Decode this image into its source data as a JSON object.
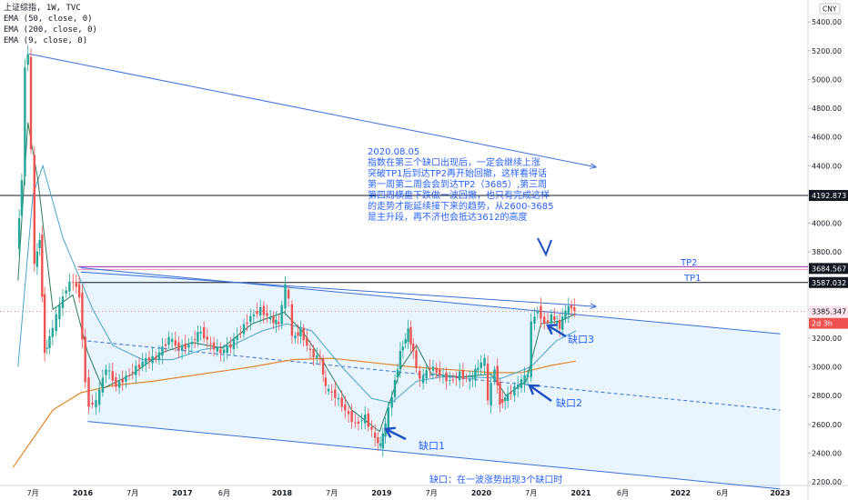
{
  "header": {
    "symbol_line": "上证综指, 1W, TVC",
    "indicators": [
      "EMA (50, close, 0)",
      "EMA (200, close, 0)",
      "EMA (9, close, 0)"
    ],
    "currency": "CNY"
  },
  "note": {
    "lines": [
      "2020.08.05",
      "指数在第三个缺口出现后，一定会继续上涨",
      "突破TP1后到达TP2再开始回撤，这样看得话",
      "第一周第二周会会到达TP2（3685）,第三周",
      "第四周横盘下跌做一波回撤，也只有完成这样",
      "的走势才能延续接下来的趋势，从2600-3685",
      "是主升段，再不济也会抵达3612的高度"
    ],
    "bottom_text": "缺口：在一波涨势出现3个缺口时"
  },
  "labels": {
    "tp2": "TP2",
    "tp1": "TP1",
    "gap1": "缺口1",
    "gap2": "缺口2",
    "gap3": "缺口3"
  },
  "chart_data": {
    "type": "line",
    "title": "上证综指, 1W, TVC",
    "xlabel": "",
    "ylabel": "",
    "ylim": [
      2160,
      5500
    ],
    "x_ticks": [
      "7月",
      "2016",
      "7月",
      "2017",
      "6月",
      "2018",
      "7月",
      "2019",
      "7月",
      "2020",
      "7月",
      "2021",
      "6月",
      "2022",
      "6月",
      "2023"
    ],
    "y_ticks": [
      2200,
      2400,
      2600,
      2800,
      3000,
      3200,
      3400,
      3600,
      3800,
      4000,
      4200,
      4400,
      4600,
      4800,
      5000,
      5200,
      5400
    ],
    "price_labels": [
      {
        "value": 4192.873,
        "text": "4192.873",
        "style": "black"
      },
      {
        "value": 3684.567,
        "text": "3684.567",
        "style": "black"
      },
      {
        "value": 3587.032,
        "text": "3587.032",
        "style": "black"
      },
      {
        "value": 3385.347,
        "text": "3385.347",
        "style": "pink"
      },
      {
        "value": 3300,
        "text": "2d 3h",
        "style": "red"
      }
    ],
    "horizontal_levels": [
      {
        "name": "TP2",
        "value": 3684.567,
        "color": "#9c27b0"
      },
      {
        "name": "TP1",
        "value": 3587.032,
        "color": "#131722"
      },
      {
        "name": "",
        "value": 4192.873,
        "color": "#131722"
      }
    ],
    "price_series": [
      [
        2015.35,
        3800
      ],
      [
        2015.4,
        4300
      ],
      [
        2015.44,
        5100
      ],
      [
        2015.46,
        5178
      ],
      [
        2015.5,
        4500
      ],
      [
        2015.53,
        3700
      ],
      [
        2015.58,
        3900
      ],
      [
        2015.63,
        3100
      ],
      [
        2015.68,
        3200
      ],
      [
        2015.75,
        3350
      ],
      [
        2015.85,
        3550
      ],
      [
        2015.92,
        3600
      ],
      [
        2015.98,
        3500
      ],
      [
        2016.04,
        2900
      ],
      [
        2016.08,
        2740
      ],
      [
        2016.15,
        2750
      ],
      [
        2016.25,
        3000
      ],
      [
        2016.35,
        2870
      ],
      [
        2016.45,
        2930
      ],
      [
        2016.55,
        2990
      ],
      [
        2016.65,
        3050
      ],
      [
        2016.75,
        3060
      ],
      [
        2016.88,
        3200
      ],
      [
        2016.98,
        3130
      ],
      [
        2017.08,
        3150
      ],
      [
        2017.2,
        3250
      ],
      [
        2017.3,
        3150
      ],
      [
        2017.4,
        3100
      ],
      [
        2017.5,
        3150
      ],
      [
        2017.6,
        3250
      ],
      [
        2017.7,
        3350
      ],
      [
        2017.8,
        3400
      ],
      [
        2017.9,
        3330
      ],
      [
        2017.98,
        3300
      ],
      [
        2018.05,
        3560
      ],
      [
        2018.08,
        3460
      ],
      [
        2018.12,
        3200
      ],
      [
        2018.2,
        3250
      ],
      [
        2018.3,
        3100
      ],
      [
        2018.4,
        3050
      ],
      [
        2018.45,
        2850
      ],
      [
        2018.55,
        2800
      ],
      [
        2018.65,
        2700
      ],
      [
        2018.75,
        2600
      ],
      [
        2018.85,
        2650
      ],
      [
        2018.95,
        2500
      ],
      [
        2019.0,
        2450
      ],
      [
        2019.05,
        2600
      ],
      [
        2019.12,
        2800
      ],
      [
        2019.2,
        3100
      ],
      [
        2019.28,
        3250
      ],
      [
        2019.33,
        3100
      ],
      [
        2019.4,
        2900
      ],
      [
        2019.5,
        3000
      ],
      [
        2019.6,
        2950
      ],
      [
        2019.7,
        2900
      ],
      [
        2019.8,
        2950
      ],
      [
        2019.9,
        2900
      ],
      [
        2019.98,
        3000
      ],
      [
        2020.05,
        3050
      ],
      [
        2020.08,
        2750
      ],
      [
        2020.15,
        3000
      ],
      [
        2020.2,
        2750
      ],
      [
        2020.28,
        2800
      ],
      [
        2020.35,
        2850
      ],
      [
        2020.42,
        2900
      ],
      [
        2020.48,
        2950
      ],
      [
        2020.52,
        3300
      ],
      [
        2020.58,
        3400
      ],
      [
        2020.65,
        3300
      ],
      [
        2020.72,
        3350
      ],
      [
        2020.8,
        3280
      ],
      [
        2020.86,
        3390
      ],
      [
        2020.92,
        3420
      ],
      [
        2020.95,
        3385
      ]
    ],
    "ema_50": [
      [
        2015.35,
        3000
      ],
      [
        2015.5,
        4200
      ],
      [
        2015.6,
        4400
      ],
      [
        2015.8,
        3900
      ],
      [
        2015.98,
        3600
      ],
      [
        2016.1,
        3400
      ],
      [
        2016.3,
        3150
      ],
      [
        2016.6,
        3050
      ],
      [
        2016.9,
        3050
      ],
      [
        2017.2,
        3120
      ],
      [
        2017.5,
        3150
      ],
      [
        2017.8,
        3250
      ],
      [
        2018.05,
        3300
      ],
      [
        2018.3,
        3250
      ],
      [
        2018.6,
        3000
      ],
      [
        2018.9,
        2780
      ],
      [
        2019.1,
        2750
      ],
      [
        2019.35,
        2900
      ],
      [
        2019.6,
        2930
      ],
      [
        2019.9,
        2930
      ],
      [
        2020.2,
        2920
      ],
      [
        2020.5,
        3000
      ],
      [
        2020.75,
        3180
      ],
      [
        2020.95,
        3250
      ]
    ],
    "ema_200": [
      [
        2015.3,
        2300
      ],
      [
        2015.5,
        2500
      ],
      [
        2015.7,
        2700
      ],
      [
        2015.98,
        2820
      ],
      [
        2016.3,
        2870
      ],
      [
        2016.7,
        2900
      ],
      [
        2017.2,
        2950
      ],
      [
        2017.7,
        3000
      ],
      [
        2018.1,
        3050
      ],
      [
        2018.5,
        3060
      ],
      [
        2018.9,
        3030
      ],
      [
        2019.3,
        3000
      ],
      [
        2019.7,
        2980
      ],
      [
        2020.1,
        2960
      ],
      [
        2020.4,
        2960
      ],
      [
        2020.7,
        3010
      ],
      [
        2020.95,
        3040
      ]
    ],
    "ema_9": [
      [
        2015.35,
        3600
      ],
      [
        2015.45,
        4700
      ],
      [
        2015.55,
        4300
      ],
      [
        2015.7,
        3400
      ],
      [
        2015.9,
        3500
      ],
      [
        2016.05,
        3100
      ],
      [
        2016.2,
        2850
      ],
      [
        2016.5,
        2950
      ],
      [
        2016.8,
        3100
      ],
      [
        2017.1,
        3170
      ],
      [
        2017.4,
        3130
      ],
      [
        2017.7,
        3300
      ],
      [
        2018.02,
        3380
      ],
      [
        2018.2,
        3250
      ],
      [
        2018.4,
        3050
      ],
      [
        2018.7,
        2700
      ],
      [
        2018.98,
        2550
      ],
      [
        2019.2,
        3000
      ],
      [
        2019.35,
        3150
      ],
      [
        2019.5,
        2950
      ],
      [
        2019.8,
        2930
      ],
      [
        2020.1,
        2950
      ],
      [
        2020.25,
        2800
      ],
      [
        2020.45,
        2900
      ],
      [
        2020.6,
        3300
      ],
      [
        2020.8,
        3320
      ],
      [
        2020.95,
        3370
      ]
    ],
    "trendlines": [
      {
        "points": [
          [
            2015.46,
            5178
          ],
          [
            2021.15,
            4390
          ]
        ],
        "style": "solid",
        "arrow": true
      },
      {
        "points": [
          [
            2015.98,
            3660
          ],
          [
            2021.15,
            3420
          ]
        ],
        "style": "solid",
        "arrow": true
      },
      {
        "points": [
          [
            2015.98,
            3690
          ],
          [
            2023.0,
            3230
          ]
        ],
        "style": "solid",
        "arrow": false
      },
      {
        "points": [
          [
            2016.05,
            2620
          ],
          [
            2023.0,
            2150
          ]
        ],
        "style": "solid",
        "arrow": false
      },
      {
        "points": [
          [
            2016.05,
            3180
          ],
          [
            2023.0,
            2700
          ]
        ],
        "style": "dashed",
        "arrow": false
      }
    ]
  }
}
